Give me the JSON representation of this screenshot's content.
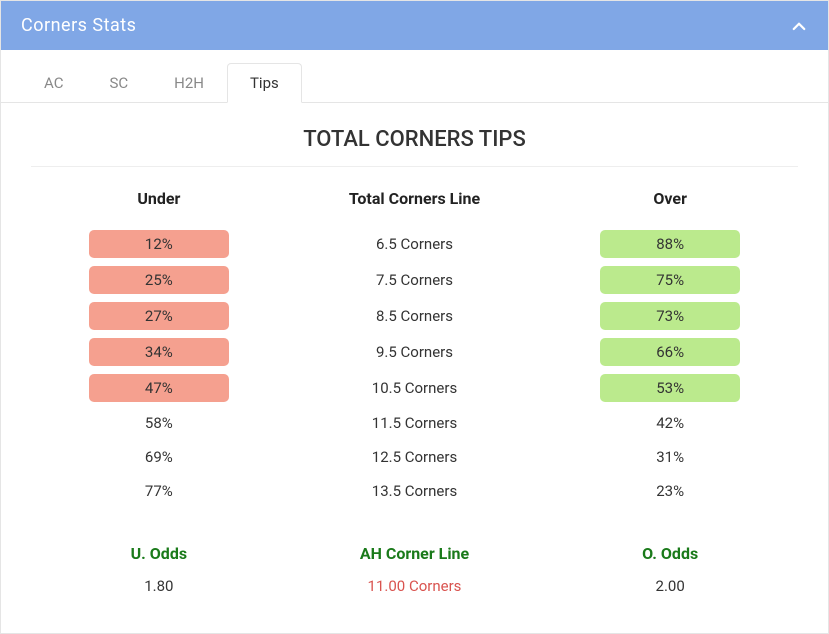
{
  "panel": {
    "title": "Corners Stats"
  },
  "tabs": [
    {
      "label": "AC",
      "active": false
    },
    {
      "label": "SC",
      "active": false
    },
    {
      "label": "H2H",
      "active": false
    },
    {
      "label": "Tips",
      "active": true
    }
  ],
  "section_title": "TOTAL CORNERS TIPS",
  "columns": {
    "under": "Under",
    "line": "Total Corners Line",
    "over": "Over"
  },
  "rows": [
    {
      "under": "12%",
      "under_hl": "red",
      "line": "6.5 Corners",
      "over": "88%",
      "over_hl": "green"
    },
    {
      "under": "25%",
      "under_hl": "red",
      "line": "7.5 Corners",
      "over": "75%",
      "over_hl": "green"
    },
    {
      "under": "27%",
      "under_hl": "red",
      "line": "8.5 Corners",
      "over": "73%",
      "over_hl": "green"
    },
    {
      "under": "34%",
      "under_hl": "red",
      "line": "9.5 Corners",
      "over": "66%",
      "over_hl": "green"
    },
    {
      "under": "47%",
      "under_hl": "red",
      "line": "10.5 Corners",
      "over": "53%",
      "over_hl": "green"
    },
    {
      "under": "58%",
      "under_hl": null,
      "line": "11.5 Corners",
      "over": "42%",
      "over_hl": null
    },
    {
      "under": "69%",
      "under_hl": null,
      "line": "12.5 Corners",
      "over": "31%",
      "over_hl": null
    },
    {
      "under": "77%",
      "under_hl": null,
      "line": "13.5 Corners",
      "over": "23%",
      "over_hl": null
    }
  ],
  "footer": {
    "under_label": "U. Odds",
    "line_label": "AH Corner Line",
    "over_label": "O. Odds",
    "under_value": "1.80",
    "line_value": "11.00 Corners",
    "over_value": "2.00"
  },
  "colors": {
    "header_bg": "#80a7e6",
    "pill_red": "#f5a08f",
    "pill_green": "#bbea8d",
    "footer_label": "#1a7a1a",
    "footer_red": "#d9534f"
  }
}
